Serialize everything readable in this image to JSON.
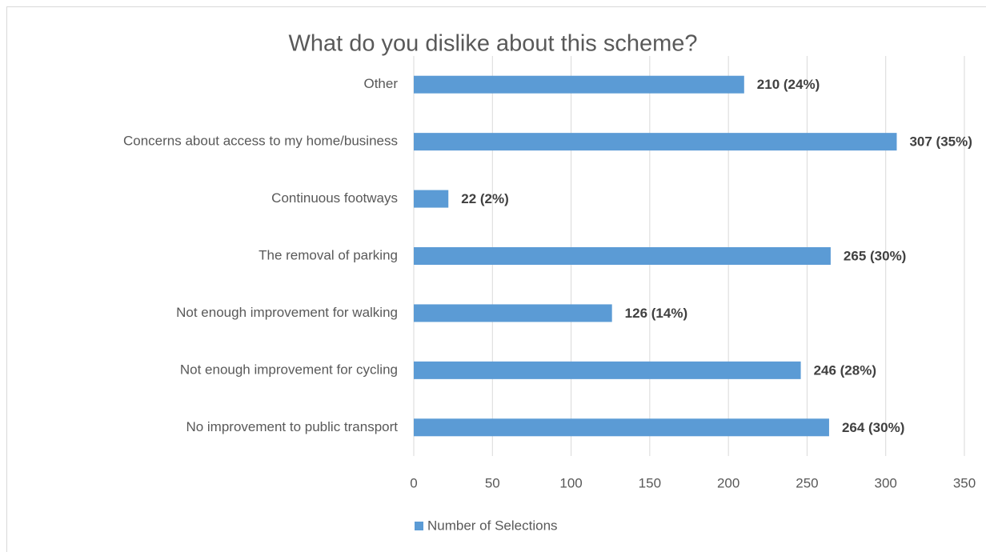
{
  "chart_data": {
    "type": "bar",
    "orientation": "horizontal",
    "title": "What do you dislike about this scheme?",
    "categories": [
      "Other",
      "Concerns about access to my home/business",
      "Continuous footways",
      "The removal of parking",
      "Not enough improvement for walking",
      "Not enough improvement for cycling",
      "No improvement to public transport"
    ],
    "series": [
      {
        "name": "Number of Selections",
        "color": "#5b9bd5",
        "values": [
          210,
          307,
          22,
          265,
          126,
          246,
          264
        ],
        "value_labels": [
          "210 (24%)",
          "307 (35%)",
          "22 (2%)",
          "265 (30%)",
          "126 (14%)",
          "246 (28%)",
          "264 (30%)"
        ]
      }
    ],
    "xlim": [
      0,
      350
    ],
    "xticks": [
      0,
      50,
      100,
      150,
      200,
      250,
      300,
      350
    ],
    "grid": true,
    "legend": "bottom"
  }
}
